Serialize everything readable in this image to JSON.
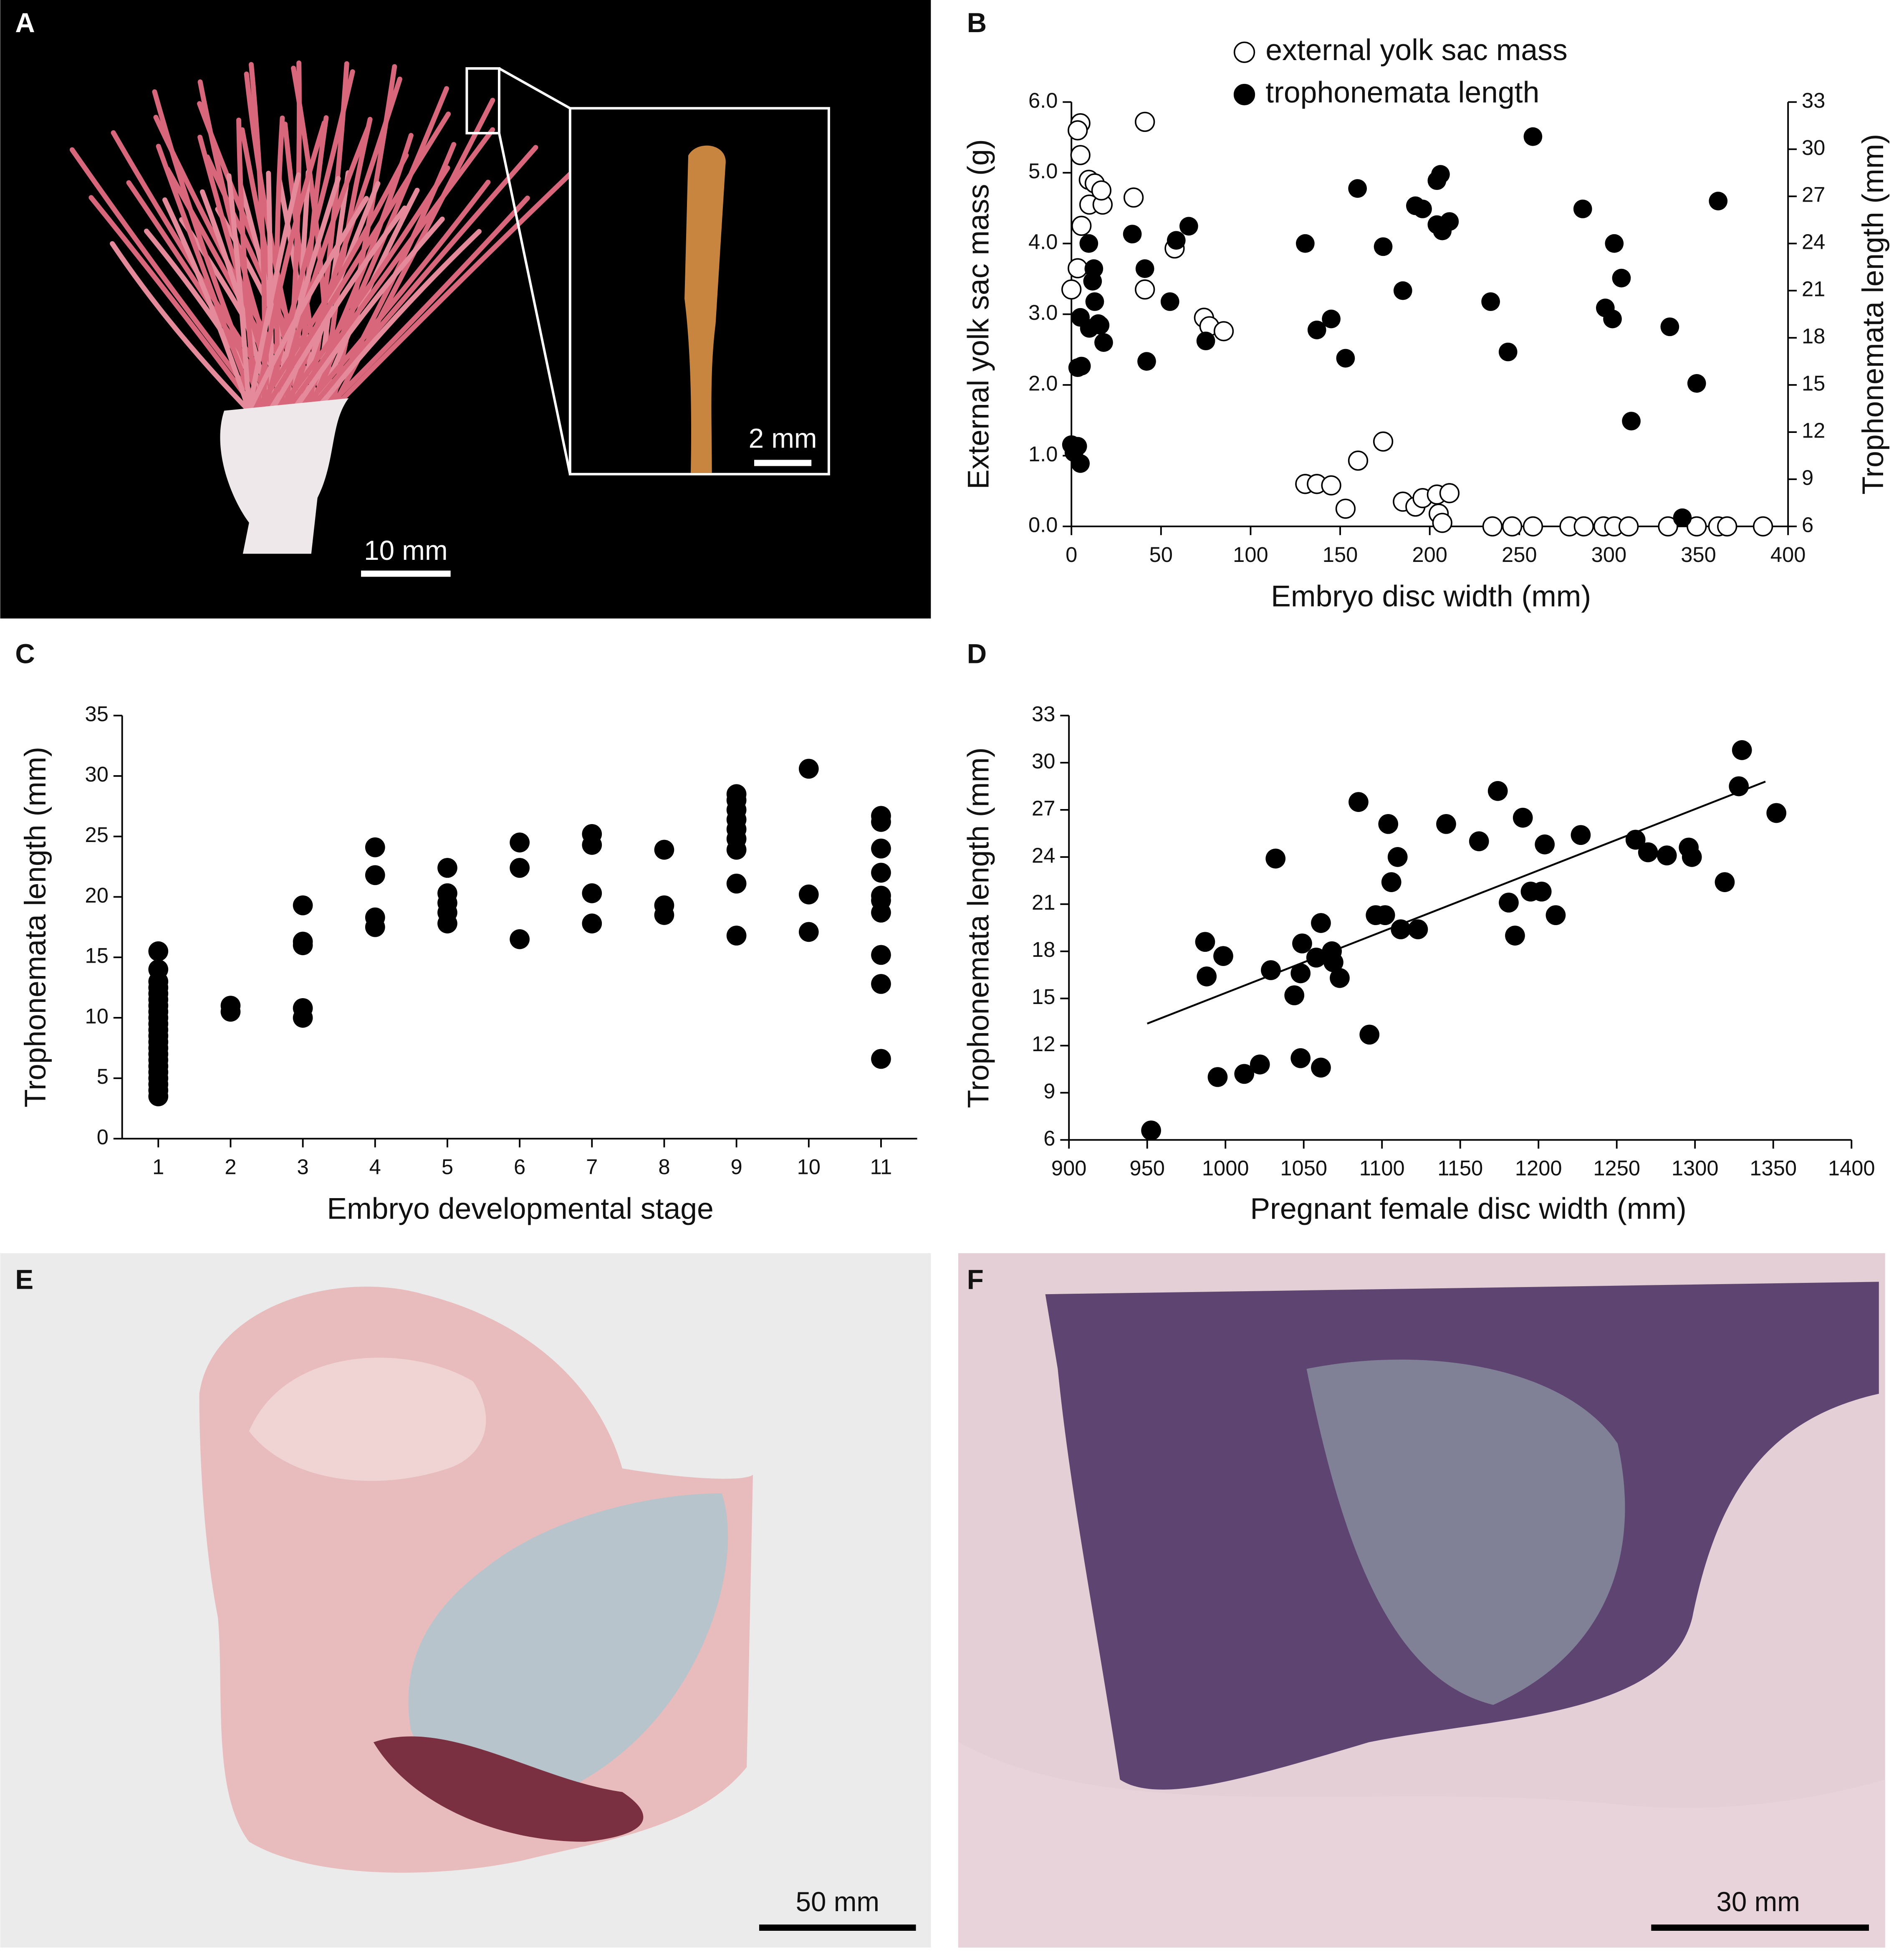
{
  "photos": [
    {
      "label": "A",
      "scale_bars": [
        "10 mm",
        "2 mm"
      ]
    },
    {
      "label": "E",
      "scale_bars": [
        "50 mm"
      ]
    },
    {
      "label": "F",
      "scale_bars": [
        "30 mm"
      ]
    }
  ],
  "chart_data": [
    {
      "type": "scatter",
      "panel_label": "B",
      "xlabel": "Embryo disc width (mm)",
      "ylabel": "External yolk sac mass (g)",
      "y2label": "Trophonemata length (mm)",
      "xlim": [
        0,
        400
      ],
      "xticks": [
        0,
        50,
        100,
        150,
        200,
        250,
        300,
        350,
        400
      ],
      "ylim": [
        0,
        6
      ],
      "yticks": [
        {
          "value": 0,
          "label": "0.0"
        },
        {
          "value": 1,
          "label": "1.0"
        },
        {
          "value": 2,
          "label": "2.0"
        },
        {
          "value": 3,
          "label": "3.0"
        },
        {
          "value": 4,
          "label": "4.0"
        },
        {
          "value": 5,
          "label": "5.0"
        },
        {
          "value": 6,
          "label": "6.0"
        }
      ],
      "y2lim": [
        6,
        33
      ],
      "y2ticks": [
        6,
        9,
        12,
        15,
        18,
        21,
        24,
        27,
        30,
        33
      ],
      "series": [
        {
          "name": "external yolk sac mass",
          "color": "#000000",
          "marker": "open",
          "axis": "y",
          "x": [
            0,
            5,
            3.5,
            5,
            9.7,
            13,
            10,
            17.4,
            16.7,
            5.6,
            3.5,
            41,
            34.7,
            41,
            57.6,
            74,
            77,
            85,
            130.5,
            137,
            145,
            153,
            160,
            174,
            185,
            192,
            196,
            204,
            211,
            205,
            207,
            235,
            246,
            257.6,
            278,
            286,
            297,
            303,
            311,
            333,
            349,
            361,
            366,
            386
          ],
          "values": [
            3.35,
            5.7,
            5.6,
            5.25,
            4.9,
            4.85,
            4.55,
            4.55,
            4.75,
            4.25,
            3.65,
            5.72,
            4.65,
            3.35,
            3.93,
            2.95,
            2.83,
            2.76,
            0.6,
            0.6,
            0.58,
            0.25,
            0.93,
            1.2,
            0.35,
            0.28,
            0.4,
            0.45,
            0.47,
            0.18,
            0.05,
            0,
            0,
            0,
            0,
            0,
            0,
            0,
            0,
            0,
            0,
            0,
            0,
            0
          ]
        },
        {
          "name": "trophonemata length",
          "color": "#000000",
          "marker": "filled",
          "axis": "y2",
          "x": [
            0,
            3.5,
            5,
            1.4,
            5.6,
            3.5,
            5,
            9.7,
            12.5,
            11.8,
            13,
            10,
            15,
            18,
            16,
            34,
            41,
            42,
            55,
            58.5,
            65.5,
            75,
            130.5,
            137,
            145,
            153,
            159.7,
            174,
            185,
            192,
            196,
            204,
            206,
            204,
            207,
            211,
            234,
            243.7,
            257.6,
            285.4,
            298,
            303,
            302,
            307,
            312.5,
            334,
            341,
            349,
            361
          ],
          "values": [
            11.2,
            11.1,
            10,
            10.7,
            16.2,
            16.1,
            19.3,
            24,
            22.4,
            21.6,
            20.3,
            18.6,
            18.9,
            17.7,
            18.8,
            24.6,
            22.4,
            16.5,
            20.3,
            24.2,
            25.1,
            17.8,
            24,
            18.5,
            19.2,
            16.7,
            27.5,
            23.8,
            21,
            26.4,
            26.2,
            25.2,
            28.4,
            28,
            24.8,
            25.4,
            20.3,
            17.1,
            30.8,
            26.2,
            19.9,
            24,
            19.2,
            21.8,
            12.7,
            18.7,
            6.55,
            15.1,
            26.7
          ]
        }
      ]
    },
    {
      "type": "scatter",
      "panel_label": "C",
      "xlabel": "Embryo developmental stage",
      "ylabel": "Trophonemata length (mm)",
      "xlim": [
        0.5,
        11.5
      ],
      "xticks": [
        1,
        2,
        3,
        4,
        5,
        6,
        7,
        8,
        9,
        10,
        11
      ],
      "ylim": [
        0,
        35
      ],
      "yticks": [
        0,
        5,
        10,
        15,
        20,
        25,
        30,
        35
      ],
      "color": "#000000",
      "marker": "filled",
      "x": [
        1,
        1,
        1,
        1,
        1,
        1,
        1,
        1,
        1,
        1,
        1,
        1,
        1,
        1,
        1,
        1,
        1,
        1,
        1,
        1,
        1,
        1,
        2,
        2,
        3,
        3,
        3,
        3,
        3,
        4,
        4,
        4,
        4,
        5,
        5,
        5,
        5,
        5,
        6,
        6,
        6,
        7,
        7,
        7,
        7,
        8,
        8,
        8,
        9,
        9,
        9,
        9,
        9,
        9,
        9,
        9,
        9,
        10,
        10,
        10,
        11,
        11,
        11,
        11,
        11,
        11,
        11,
        11,
        11,
        11
      ],
      "values": [
        3.5,
        4,
        4.5,
        5,
        5.5,
        6,
        6.5,
        7,
        7.5,
        8,
        8.5,
        9,
        9.5,
        10,
        10.5,
        11,
        11.5,
        12,
        12.5,
        13,
        14,
        15.5,
        10.5,
        11,
        10,
        10.8,
        16,
        16.3,
        19.3,
        17.5,
        18.3,
        21.8,
        24.1,
        17.8,
        18.7,
        19.5,
        20.3,
        22.4,
        16.5,
        22.4,
        24.5,
        17.8,
        20.3,
        24.3,
        25.2,
        18.5,
        19.3,
        23.9,
        16.8,
        21.1,
        23.9,
        24.8,
        25.6,
        26.4,
        27.2,
        28,
        28.5,
        17.1,
        20.2,
        30.6,
        6.6,
        12.8,
        15.2,
        18.7,
        19.7,
        20.1,
        22,
        24,
        26.2,
        26.7
      ]
    },
    {
      "type": "scatter",
      "panel_label": "D",
      "xlabel": "Pregnant female disc width (mm)",
      "ylabel": "Trophonemata length (mm)",
      "xlim": [
        900,
        1400
      ],
      "xticks": [
        900,
        950,
        1000,
        1050,
        1100,
        1150,
        1200,
        1250,
        1300,
        1350,
        1400
      ],
      "ylim": [
        6,
        33
      ],
      "yticks": [
        6,
        9,
        12,
        15,
        18,
        21,
        24,
        27,
        30,
        33
      ],
      "color": "#000000",
      "marker": "filled",
      "x": [
        952.5,
        988,
        987,
        998.6,
        995,
        1012,
        1022,
        1032,
        1029,
        1044,
        1048,
        1049,
        1048,
        1058,
        1061,
        1061,
        1068,
        1069,
        1073,
        1085,
        1092,
        1096,
        1102,
        1104,
        1106,
        1110,
        1112,
        1123,
        1141,
        1162,
        1174,
        1181,
        1185,
        1190,
        1195,
        1202,
        1204,
        1211,
        1227,
        1262,
        1270,
        1282,
        1296,
        1298,
        1319,
        1328,
        1330,
        1352
      ],
      "values": [
        6.6,
        16.4,
        18.6,
        17.7,
        10,
        10.2,
        10.8,
        23.9,
        16.8,
        15.2,
        11.2,
        18.5,
        16.6,
        17.6,
        19.8,
        10.6,
        18,
        17.3,
        16.3,
        27.5,
        12.7,
        20.3,
        20.3,
        26.1,
        22.4,
        24,
        19.4,
        19.4,
        26.1,
        25,
        28.2,
        21.1,
        19,
        26.5,
        21.8,
        21.8,
        24.8,
        20.3,
        25.4,
        25.1,
        24.3,
        24.1,
        24.6,
        24,
        22.4,
        28.5,
        30.8,
        26.8
      ],
      "trendline": {
        "x": [
          950,
          1345
        ],
        "values": [
          13.4,
          28.8
        ]
      }
    }
  ]
}
